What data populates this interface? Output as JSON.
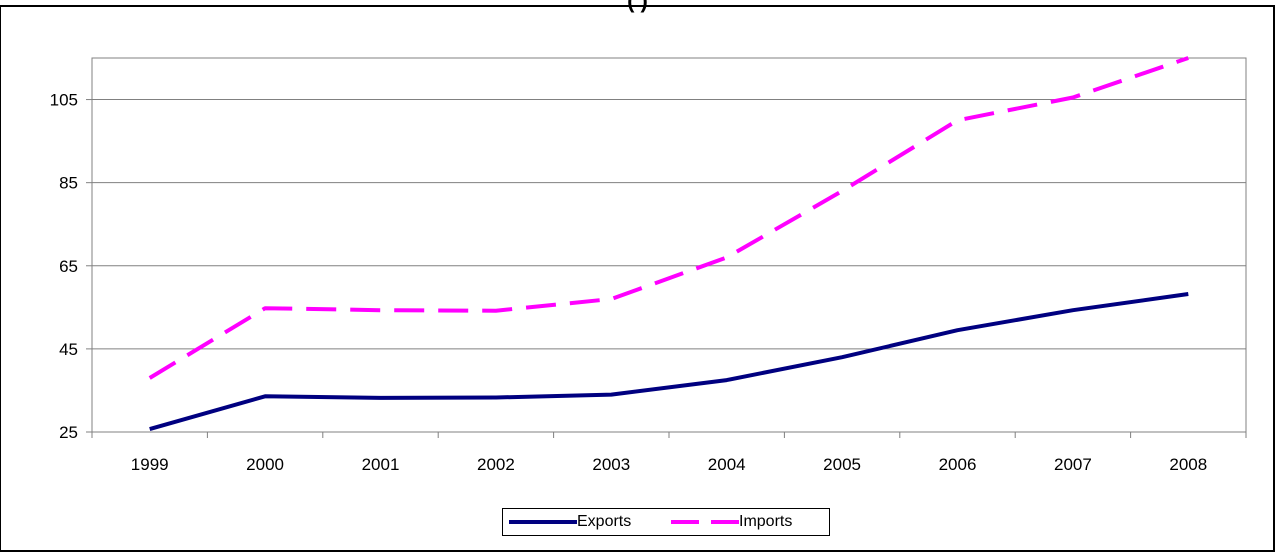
{
  "chart_data": {
    "type": "line",
    "title": "(          )",
    "xlabel": "",
    "ylabel": "",
    "categories": [
      "1999",
      "2000",
      "2001",
      "2002",
      "2003",
      "2004",
      "2005",
      "2006",
      "2007",
      "2008"
    ],
    "ylim": [
      25,
      115
    ],
    "yticks": [
      25,
      45,
      65,
      85,
      105
    ],
    "grid": true,
    "legend_position": "bottom",
    "series": [
      {
        "name": "Exports",
        "color": "#000080",
        "style": "solid",
        "values": [
          25.7,
          33.6,
          33.2,
          33.3,
          34.0,
          37.5,
          43.0,
          49.5,
          54.3,
          58.2
        ]
      },
      {
        "name": "Imports",
        "color": "#ff00ff",
        "style": "dashed",
        "values": [
          38.0,
          54.8,
          54.3,
          54.2,
          57.0,
          67.0,
          83.0,
          100.0,
          105.5,
          115.0
        ]
      }
    ]
  }
}
